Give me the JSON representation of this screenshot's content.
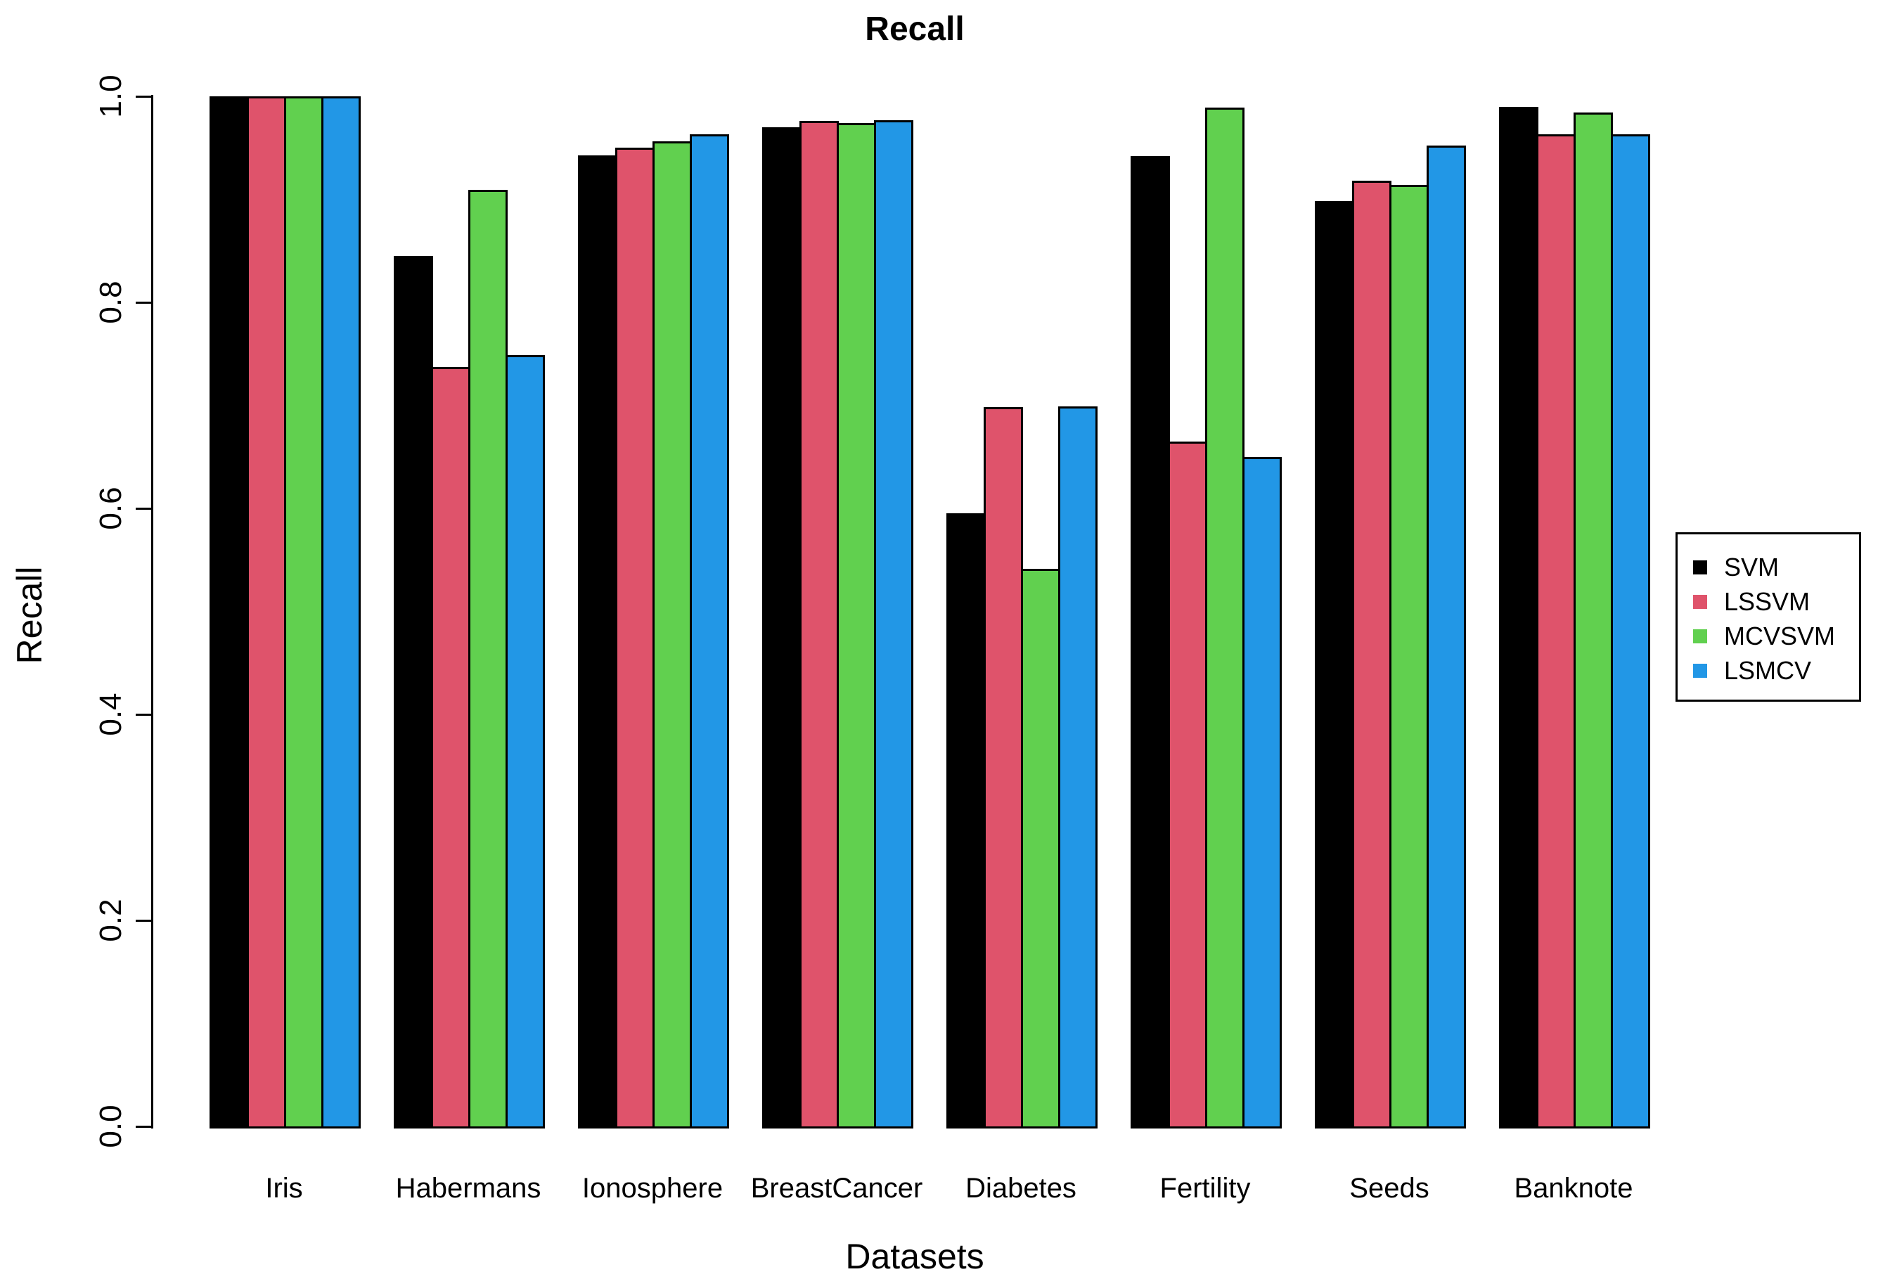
{
  "chart_data": {
    "type": "bar",
    "title": "Recall",
    "xlabel": "Datasets",
    "ylabel": "Recall",
    "ylim": [
      0.0,
      1.0
    ],
    "yticks": [
      0.0,
      0.2,
      0.4,
      0.6,
      0.8,
      1.0
    ],
    "grid": false,
    "legend_position": "right-outside",
    "categories": [
      "Iris",
      "Habermans",
      "Ionosphere",
      "BreastCancer",
      "Diabetes",
      "Fertility",
      "Seeds",
      "Banknote"
    ],
    "series": [
      {
        "name": "SVM",
        "color": "#000000",
        "values": [
          1.0,
          0.845,
          0.943,
          0.97,
          0.595,
          0.942,
          0.898,
          0.99
        ]
      },
      {
        "name": "LSSVM",
        "color": "#DF536B",
        "values": [
          1.0,
          0.737,
          0.95,
          0.976,
          0.698,
          0.665,
          0.918,
          0.963
        ]
      },
      {
        "name": "MCVSVM",
        "color": "#61D04F",
        "values": [
          1.0,
          0.909,
          0.956,
          0.974,
          0.541,
          0.989,
          0.914,
          0.984
        ]
      },
      {
        "name": "LSMCV",
        "color": "#2297E6",
        "values": [
          1.0,
          0.749,
          0.963,
          0.977,
          0.699,
          0.65,
          0.952,
          0.963
        ]
      }
    ]
  }
}
